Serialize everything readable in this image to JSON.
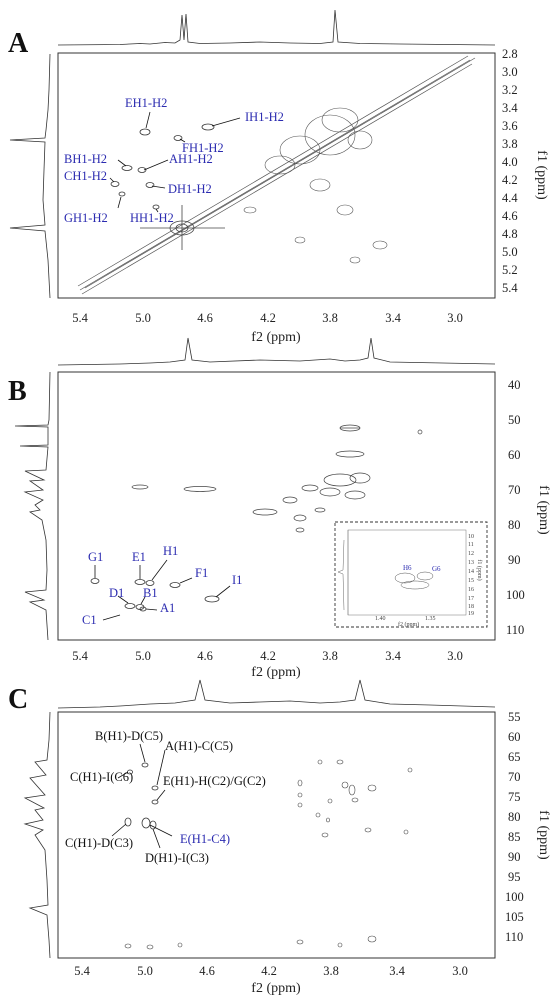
{
  "panels": {
    "A": {
      "label": "A",
      "xlabel": "f2 (ppm)",
      "ylabel": "f1 (ppm)",
      "xticks": [
        "5.4",
        "5.0",
        "4.6",
        "4.2",
        "3.8",
        "3.4",
        "3.0"
      ],
      "yticks": [
        "2.8",
        "3.0",
        "3.2",
        "3.4",
        "3.6",
        "3.8",
        "4.0",
        "4.2",
        "4.4",
        "4.6",
        "4.8",
        "5.0",
        "5.2",
        "5.4"
      ],
      "annotations": [
        "EH1-H2",
        "IH1-H2",
        "FH1-H2",
        "BH1-H2",
        "AH1-H2",
        "CH1-H2",
        "DH1-H2",
        "GH1-H2",
        "HH1-H2"
      ]
    },
    "B": {
      "label": "B",
      "xlabel": "f2 (ppm)",
      "ylabel": "f1 (ppm)",
      "xticks": [
        "5.4",
        "5.0",
        "4.6",
        "4.2",
        "3.8",
        "3.4",
        "3.0"
      ],
      "yticks": [
        "40",
        "50",
        "60",
        "70",
        "80",
        "90",
        "100",
        "110"
      ],
      "annotations": [
        "G1",
        "E1",
        "H1",
        "F1",
        "D1",
        "B1",
        "A1",
        "I1",
        "C1"
      ],
      "inset": {
        "labels": [
          "H6",
          "G6"
        ],
        "xticks": [
          "1.40",
          "1.35"
        ],
        "xlabel": "f2 (ppm)",
        "ylabel": "f1 (ppm)",
        "yticks": [
          "10",
          "11",
          "12",
          "13",
          "14",
          "15",
          "16",
          "17",
          "18",
          "19"
        ]
      }
    },
    "C": {
      "label": "C",
      "xlabel": "f2 (ppm)",
      "ylabel": "f1 (ppm)",
      "xticks": [
        "5.4",
        "5.0",
        "4.6",
        "4.2",
        "3.8",
        "3.4",
        "3.0"
      ],
      "yticks": [
        "55",
        "60",
        "65",
        "70",
        "75",
        "80",
        "85",
        "90",
        "95",
        "100",
        "105",
        "110"
      ],
      "annotations": [
        "B(H1)-D(C5)",
        "A(H1)-C(C5)",
        "C(H1)-I(C6)",
        "E(H1)-H(C2)/G(C2)",
        "C(H1)-D(C3)",
        "E(H1-C4)",
        "D(H1)-I(C3)"
      ]
    }
  },
  "chart_data": [
    {
      "type": "scatter",
      "title": "",
      "xlabel": "f2 (ppm)",
      "ylabel": "f1 (ppm)",
      "xlim": [
        5.65,
        2.75
      ],
      "ylim": [
        2.75,
        5.5
      ],
      "series": [
        {
          "values": [
            {
              "x": 5.0,
              "y": 3.65
            },
            {
              "x": 4.3,
              "y": 3.6
            },
            {
              "x": 4.8,
              "y": 3.8
            },
            {
              "x": 5.05,
              "y": 4.05
            },
            {
              "x": 5.0,
              "y": 4.08
            },
            {
              "x": 5.22,
              "y": 4.2
            },
            {
              "x": 4.9,
              "y": 4.25
            },
            {
              "x": 4.7,
              "y": 4.7
            },
            {
              "x": 4.75,
              "y": 4.55
            }
          ]
        }
      ]
    },
    {
      "type": "scatter",
      "title": "",
      "xlabel": "f2 (ppm)",
      "ylabel": "f1 (ppm)",
      "xlim": [
        5.65,
        2.75
      ],
      "ylim": [
        35,
        113
      ],
      "series": [
        {
          "values": [
            {
              "x": 5.2,
              "y": 98.5
            },
            {
              "x": 4.98,
              "y": 98.2
            },
            {
              "x": 4.92,
              "y": 98.5
            },
            {
              "x": 4.72,
              "y": 99.5
            },
            {
              "x": 5.02,
              "y": 106.0
            },
            {
              "x": 4.97,
              "y": 106.2
            },
            {
              "x": 4.95,
              "y": 106.4
            },
            {
              "x": 4.52,
              "y": 103.2
            },
            {
              "x": 5.32,
              "y": 109.5
            }
          ]
        }
      ]
    },
    {
      "type": "scatter",
      "title": "",
      "xlabel": "f2 (ppm)",
      "ylabel": "f1 (ppm)",
      "xlim": [
        5.7,
        2.75
      ],
      "ylim": [
        53,
        112
      ],
      "series": [
        {
          "values": [
            {
              "x": 4.97,
              "y": 62.0
            },
            {
              "x": 4.85,
              "y": 66.0
            },
            {
              "x": 5.12,
              "y": 68.0
            },
            {
              "x": 4.85,
              "y": 76.0
            },
            {
              "x": 5.18,
              "y": 80.5
            },
            {
              "x": 4.95,
              "y": 81.5
            },
            {
              "x": 5.0,
              "y": 82.0
            }
          ]
        }
      ]
    }
  ]
}
